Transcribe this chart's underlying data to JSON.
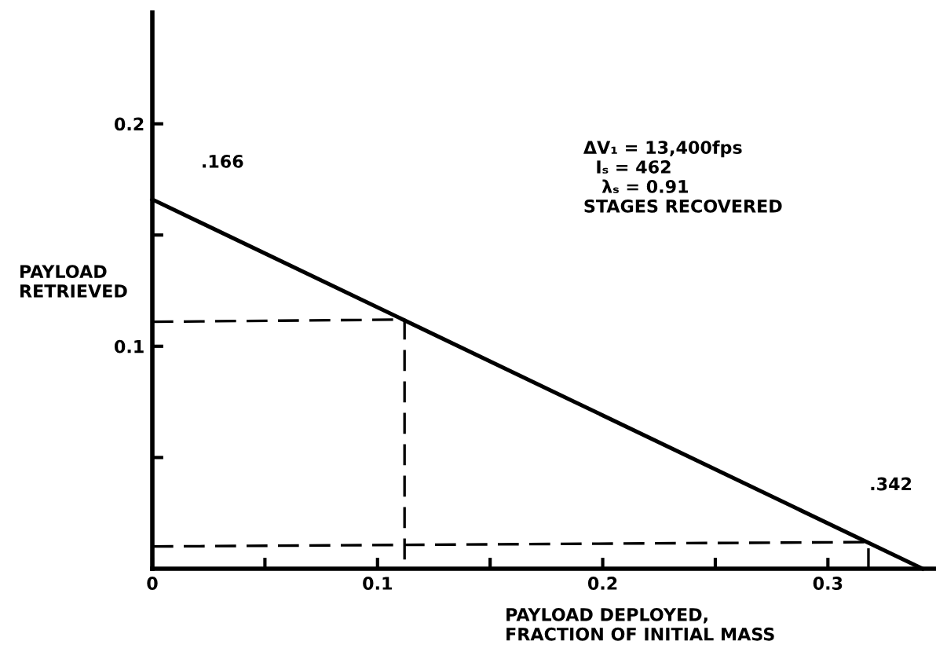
{
  "chart_data": {
    "type": "line",
    "xlabel": "PAYLOAD DEPLOYED,\nFRACTION OF INITIAL MASS",
    "ylabel": "PAYLOAD\nRETRIEVED",
    "xlim": [
      0,
      0.348
    ],
    "ylim": [
      0,
      0.25
    ],
    "xticks": [
      0,
      {
        "value": 0.05,
        "label": null
      },
      0.1,
      {
        "value": 0.15,
        "label": null
      },
      0.2,
      {
        "value": 0.25,
        "label": null
      },
      0.3
    ],
    "yticks": [
      {
        "value": 0.05,
        "label": null
      },
      0.1,
      {
        "value": 0.15,
        "label": null
      },
      0.2
    ],
    "grid": false,
    "legend": false,
    "marker": "none",
    "series": [
      {
        "color": "#000000",
        "x": [
          0,
          0.342
        ],
        "values": [
          0.166,
          0
        ],
        "line_style": "solid"
      },
      {
        "color": "#000000",
        "x": [
          0,
          0.112,
          0.112
        ],
        "values": [
          0.111,
          0.112,
          0
        ],
        "line_style": "dashed"
      },
      {
        "color": "#000000",
        "x": [
          0,
          0.318,
          0.318
        ],
        "values": [
          0.01,
          0.012,
          0
        ],
        "line_style": "dashed"
      }
    ],
    "annotations": [
      ".166",
      ".342",
      "ΔV₁ = 13,400fps\n  Iₛ = 462\n   λₛ = 0.91\nSTAGES RECOVERED"
    ]
  }
}
